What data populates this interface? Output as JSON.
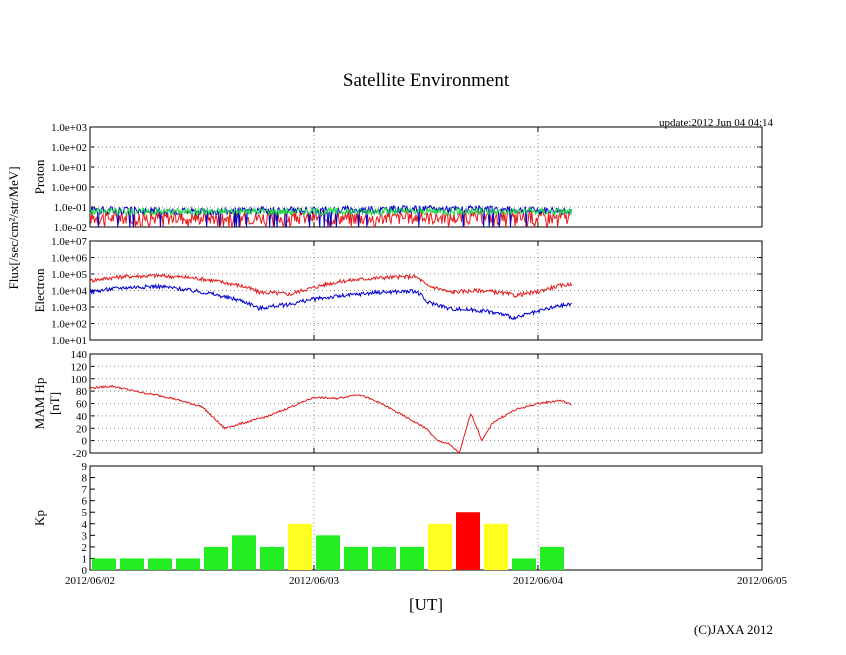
{
  "figure": {
    "title": "Satellite Environment",
    "update": "update:2012 Jun 04 04:14",
    "copyright": "(C)JAXA 2012",
    "xlabel": "[UT]",
    "flux_label": "Flux[/sec/cm²/str/MeV]",
    "x_ticks": [
      "2012/06/02",
      "2012/06/03",
      "2012/06/04",
      "2012/06/05"
    ]
  },
  "colors": {
    "red": "#e41a1c",
    "blue": "#0000cc",
    "green": "#22dd44",
    "kp_green": "#22ee22",
    "kp_yellow": "#ffff22",
    "kp_red": "#ff0000"
  },
  "chart_data": [
    {
      "type": "line",
      "panel": "proton",
      "ylabel": "Proton",
      "yscale": "log",
      "ylim": [
        0.01,
        1000
      ],
      "y_ticks": [
        "1.0e-02",
        "1.0e-01",
        "1.0e+00",
        "1.0e+01",
        "1.0e+02",
        "1.0e+03"
      ],
      "xlim_days": [
        0,
        3
      ],
      "grid": true,
      "series": [
        {
          "color": "red",
          "x": [
            0,
            0.5,
            1.0,
            1.5,
            2.0,
            2.15
          ],
          "values": [
            0.03,
            0.03,
            0.03,
            0.03,
            0.03,
            0.03
          ]
        },
        {
          "color": "blue",
          "x": [
            0,
            0.5,
            1.0,
            1.5,
            2.0,
            2.15
          ],
          "values": [
            0.07,
            0.06,
            0.07,
            0.08,
            0.07,
            0.07
          ]
        },
        {
          "color": "green",
          "x": [
            0,
            0.5,
            1.0,
            1.5,
            2.0,
            2.15
          ],
          "values": [
            0.06,
            0.06,
            0.06,
            0.06,
            0.06,
            0.06
          ]
        }
      ]
    },
    {
      "type": "line",
      "panel": "electron",
      "ylabel": "Electron",
      "yscale": "log",
      "ylim": [
        10,
        10000000
      ],
      "y_ticks": [
        "1.0e+01",
        "1.0e+02",
        "1.0e+03",
        "1.0e+04",
        "1.0e+05",
        "1.0e+06",
        "1.0e+07"
      ],
      "xlim_days": [
        0,
        3
      ],
      "grid": true,
      "series": [
        {
          "color": "red",
          "x": [
            0,
            0.15,
            0.3,
            0.45,
            0.6,
            0.75,
            0.9,
            1.0,
            1.15,
            1.3,
            1.45,
            1.5,
            1.6,
            1.75,
            1.9,
            2.0,
            2.15
          ],
          "values": [
            40000,
            70000,
            80000,
            60000,
            30000,
            8000,
            6000,
            15000,
            40000,
            60000,
            70000,
            20000,
            8000,
            10000,
            5000,
            8000,
            25000
          ]
        },
        {
          "color": "blue",
          "x": [
            0,
            0.15,
            0.3,
            0.45,
            0.6,
            0.75,
            0.9,
            1.0,
            1.15,
            1.3,
            1.45,
            1.5,
            1.6,
            1.75,
            1.9,
            2.0,
            2.15
          ],
          "values": [
            8000,
            15000,
            18000,
            10000,
            4000,
            800,
            1500,
            3000,
            5000,
            8000,
            9000,
            2000,
            800,
            600,
            200,
            500,
            1500
          ]
        }
      ]
    },
    {
      "type": "line",
      "panel": "mam_hp",
      "ylabel": "MAM Hp",
      "ylabel2": "[nT]",
      "yscale": "linear",
      "ylim": [
        -20,
        140
      ],
      "y_ticks": [
        "-20",
        "0",
        "20",
        "40",
        "60",
        "80",
        "100",
        "120",
        "140"
      ],
      "xlim_days": [
        0,
        3
      ],
      "grid": true,
      "series": [
        {
          "color": "red",
          "x": [
            0,
            0.1,
            0.2,
            0.35,
            0.5,
            0.6,
            0.7,
            0.8,
            0.9,
            1.0,
            1.1,
            1.2,
            1.3,
            1.4,
            1.5,
            1.55,
            1.6,
            1.65,
            1.7,
            1.75,
            1.8,
            1.9,
            2.0,
            2.1,
            2.15
          ],
          "values": [
            85,
            88,
            80,
            70,
            55,
            20,
            30,
            40,
            55,
            70,
            68,
            75,
            60,
            40,
            20,
            0,
            -5,
            -20,
            45,
            0,
            30,
            50,
            60,
            65,
            58
          ]
        }
      ]
    },
    {
      "type": "bar",
      "panel": "kp",
      "ylabel": "Kp",
      "ylim": [
        0,
        9
      ],
      "y_ticks": [
        "0",
        "1",
        "2",
        "3",
        "4",
        "5",
        "6",
        "7",
        "8",
        "9"
      ],
      "xlim_days": [
        0,
        3
      ],
      "bin_hours": 3,
      "values": [
        1,
        1,
        1,
        1,
        2,
        3,
        2,
        4,
        3,
        2,
        2,
        2,
        4,
        5,
        4,
        1,
        2
      ],
      "bar_colors": [
        "kp_green",
        "kp_green",
        "kp_green",
        "kp_green",
        "kp_green",
        "kp_green",
        "kp_green",
        "kp_yellow",
        "kp_green",
        "kp_green",
        "kp_green",
        "kp_green",
        "kp_yellow",
        "kp_red",
        "kp_yellow",
        "kp_green",
        "kp_green"
      ]
    }
  ]
}
